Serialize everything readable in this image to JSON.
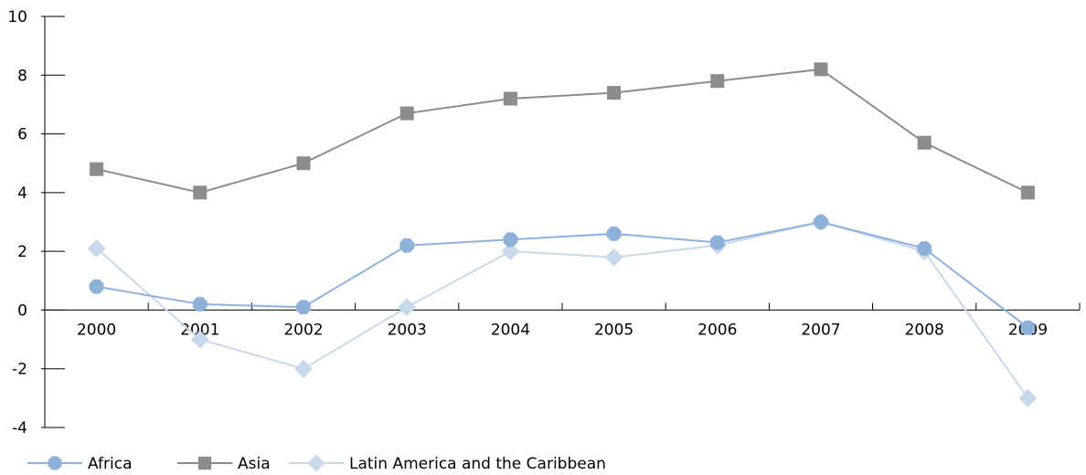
{
  "chart_data": {
    "type": "line",
    "title": "",
    "xlabel": "",
    "ylabel": "",
    "x": [
      "2000",
      "2001",
      "2002",
      "2003",
      "2004",
      "2005",
      "2006",
      "2007",
      "2008",
      "2009"
    ],
    "ylim": [
      -4,
      10
    ],
    "yticks": [
      -4,
      -2,
      0,
      2,
      4,
      6,
      8,
      10
    ],
    "ytick_labels": [
      "-4",
      "-2",
      "0",
      "2",
      "4",
      "6",
      "8",
      "10"
    ],
    "grid": false,
    "legend_position": "bottom-left",
    "series": [
      {
        "name": "Africa",
        "values": [
          0.8,
          0.2,
          0.1,
          2.2,
          2.4,
          2.6,
          2.3,
          3.0,
          2.1,
          -0.6
        ],
        "color": "#8eb1d9",
        "marker": "octagon"
      },
      {
        "name": "Asia",
        "values": [
          4.8,
          4.0,
          5.0,
          6.7,
          7.2,
          7.4,
          7.8,
          8.2,
          5.7,
          4.0
        ],
        "color": "#8c8c8c",
        "marker": "square"
      },
      {
        "name": "Latin America and the Caribbean",
        "values": [
          2.1,
          -1.0,
          -2.0,
          0.1,
          2.0,
          1.8,
          2.2,
          3.0,
          2.0,
          -3.0
        ],
        "color": "#c9d9ec",
        "marker": "diamond"
      }
    ]
  }
}
